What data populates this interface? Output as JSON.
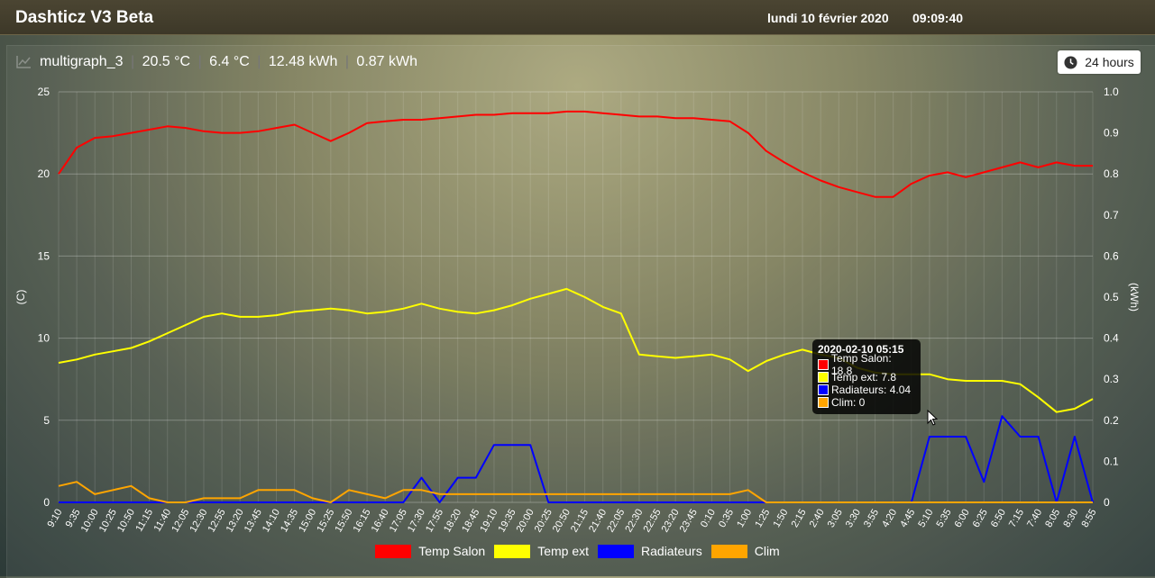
{
  "header": {
    "title": "Dashticz V3 Beta",
    "date": "lundi 10 février 2020",
    "time": "09:09:40"
  },
  "graph": {
    "name": "multigraph_3",
    "values": [
      "20.5 °C",
      "6.4 °C",
      "12.48 kWh",
      "0.87 kWh"
    ],
    "period_button": "24 hours",
    "icons": {
      "graph": "chart-line-icon",
      "period": "clock-icon"
    }
  },
  "tooltip": {
    "title": "2020-02-10 05:15",
    "rows": [
      "Temp Salon: 18.8",
      "Temp ext: 7.8",
      "Radiateurs: 4.04",
      "Clim: 0"
    ]
  },
  "chart_data": {
    "type": "line",
    "y_left": {
      "label": "(C)",
      "range": [
        0,
        25
      ],
      "ticks": [
        "0",
        "5",
        "10",
        "15",
        "20",
        "25"
      ]
    },
    "y_right": {
      "label": "(kWh)",
      "range": [
        0,
        1
      ],
      "ticks": [
        "0",
        "0.1",
        "0.2",
        "0.3",
        "0.4",
        "0.5",
        "0.6",
        "0.7",
        "0.8",
        "0.9",
        "1.0"
      ]
    },
    "x": [
      "9:10",
      "9:35",
      "10:00",
      "10:25",
      "10:50",
      "11:15",
      "11:40",
      "12:05",
      "12:30",
      "12:55",
      "13:20",
      "13:45",
      "14:10",
      "14:35",
      "15:00",
      "15:25",
      "15:50",
      "16:15",
      "16:40",
      "17:05",
      "17:30",
      "17:55",
      "18:20",
      "18:45",
      "19:10",
      "19:35",
      "20:00",
      "20:25",
      "20:50",
      "21:15",
      "21:40",
      "22:05",
      "22:30",
      "22:55",
      "23:20",
      "23:45",
      "0:10",
      "0:35",
      "1:00",
      "1:25",
      "1:50",
      "2:15",
      "2:40",
      "3:05",
      "3:30",
      "3:55",
      "4:20",
      "4:45",
      "5:10",
      "5:35",
      "6:00",
      "6:25",
      "6:50",
      "7:15",
      "7:40",
      "8:05",
      "8:30",
      "8:55"
    ],
    "grid": true,
    "legend_position": "bottom",
    "series": [
      {
        "name": "Temp Salon",
        "axis": "left",
        "color": "#ff0000",
        "values": [
          20.0,
          21.6,
          22.2,
          22.3,
          22.5,
          22.7,
          22.9,
          22.8,
          22.6,
          22.5,
          22.5,
          22.6,
          22.8,
          23.0,
          22.5,
          22.0,
          22.5,
          23.1,
          23.2,
          23.3,
          23.3,
          23.4,
          23.5,
          23.6,
          23.6,
          23.7,
          23.7,
          23.7,
          23.8,
          23.8,
          23.7,
          23.6,
          23.5,
          23.5,
          23.4,
          23.4,
          23.3,
          23.2,
          22.5,
          21.4,
          20.7,
          20.1,
          19.6,
          19.2,
          18.9,
          18.6,
          18.6,
          19.4,
          19.9,
          20.1,
          19.8,
          20.1,
          20.4,
          20.7,
          20.4,
          20.7,
          20.5,
          20.5
        ]
      },
      {
        "name": "Temp ext",
        "axis": "left",
        "color": "#ffff00",
        "values": [
          8.5,
          8.7,
          9.0,
          9.2,
          9.4,
          9.8,
          10.3,
          10.8,
          11.3,
          11.5,
          11.3,
          11.3,
          11.4,
          11.6,
          11.7,
          11.8,
          11.7,
          11.5,
          11.6,
          11.8,
          12.1,
          11.8,
          11.6,
          11.5,
          11.7,
          12.0,
          12.4,
          12.7,
          13.0,
          12.5,
          11.9,
          11.5,
          9.0,
          8.9,
          8.8,
          8.9,
          9.0,
          8.7,
          8.0,
          8.6,
          9.0,
          9.3,
          9.0,
          8.8,
          8.2,
          7.9,
          7.8,
          7.8,
          7.8,
          7.5,
          7.4,
          7.4,
          7.4,
          7.2,
          6.4,
          5.5,
          5.7,
          6.3
        ]
      },
      {
        "name": "Radiateurs",
        "axis": "right",
        "color": "#0000ff",
        "values": [
          0,
          0,
          0,
          0,
          0,
          0,
          0,
          0,
          0,
          0,
          0,
          0,
          0,
          0,
          0,
          0,
          0,
          0,
          0,
          0,
          0.06,
          0,
          0.06,
          0.06,
          0.14,
          0.14,
          0.14,
          0,
          0,
          0,
          0,
          0,
          0,
          0,
          0,
          0,
          0,
          0,
          0,
          0,
          0,
          0,
          0,
          0,
          0,
          0,
          0,
          0,
          0.16,
          0.16,
          0.16,
          0.05,
          0.21,
          0.16,
          0.16,
          0,
          0.16,
          0
        ]
      },
      {
        "name": "Clim",
        "axis": "right",
        "color": "#ffa500",
        "values": [
          0.04,
          0.05,
          0.02,
          0.03,
          0.04,
          0.01,
          0,
          0,
          0.01,
          0.01,
          0.01,
          0.03,
          0.03,
          0.03,
          0.01,
          0,
          0.03,
          0.02,
          0.01,
          0.03,
          0.03,
          0.02,
          0.02,
          0.02,
          0.02,
          0.02,
          0.02,
          0.02,
          0.02,
          0.02,
          0.02,
          0.02,
          0.02,
          0.02,
          0.02,
          0.02,
          0.02,
          0.02,
          0.03,
          0,
          0,
          0,
          0,
          0,
          0,
          0,
          0,
          0,
          0,
          0,
          0,
          0,
          0,
          0,
          0,
          0,
          0,
          0
        ]
      }
    ]
  }
}
